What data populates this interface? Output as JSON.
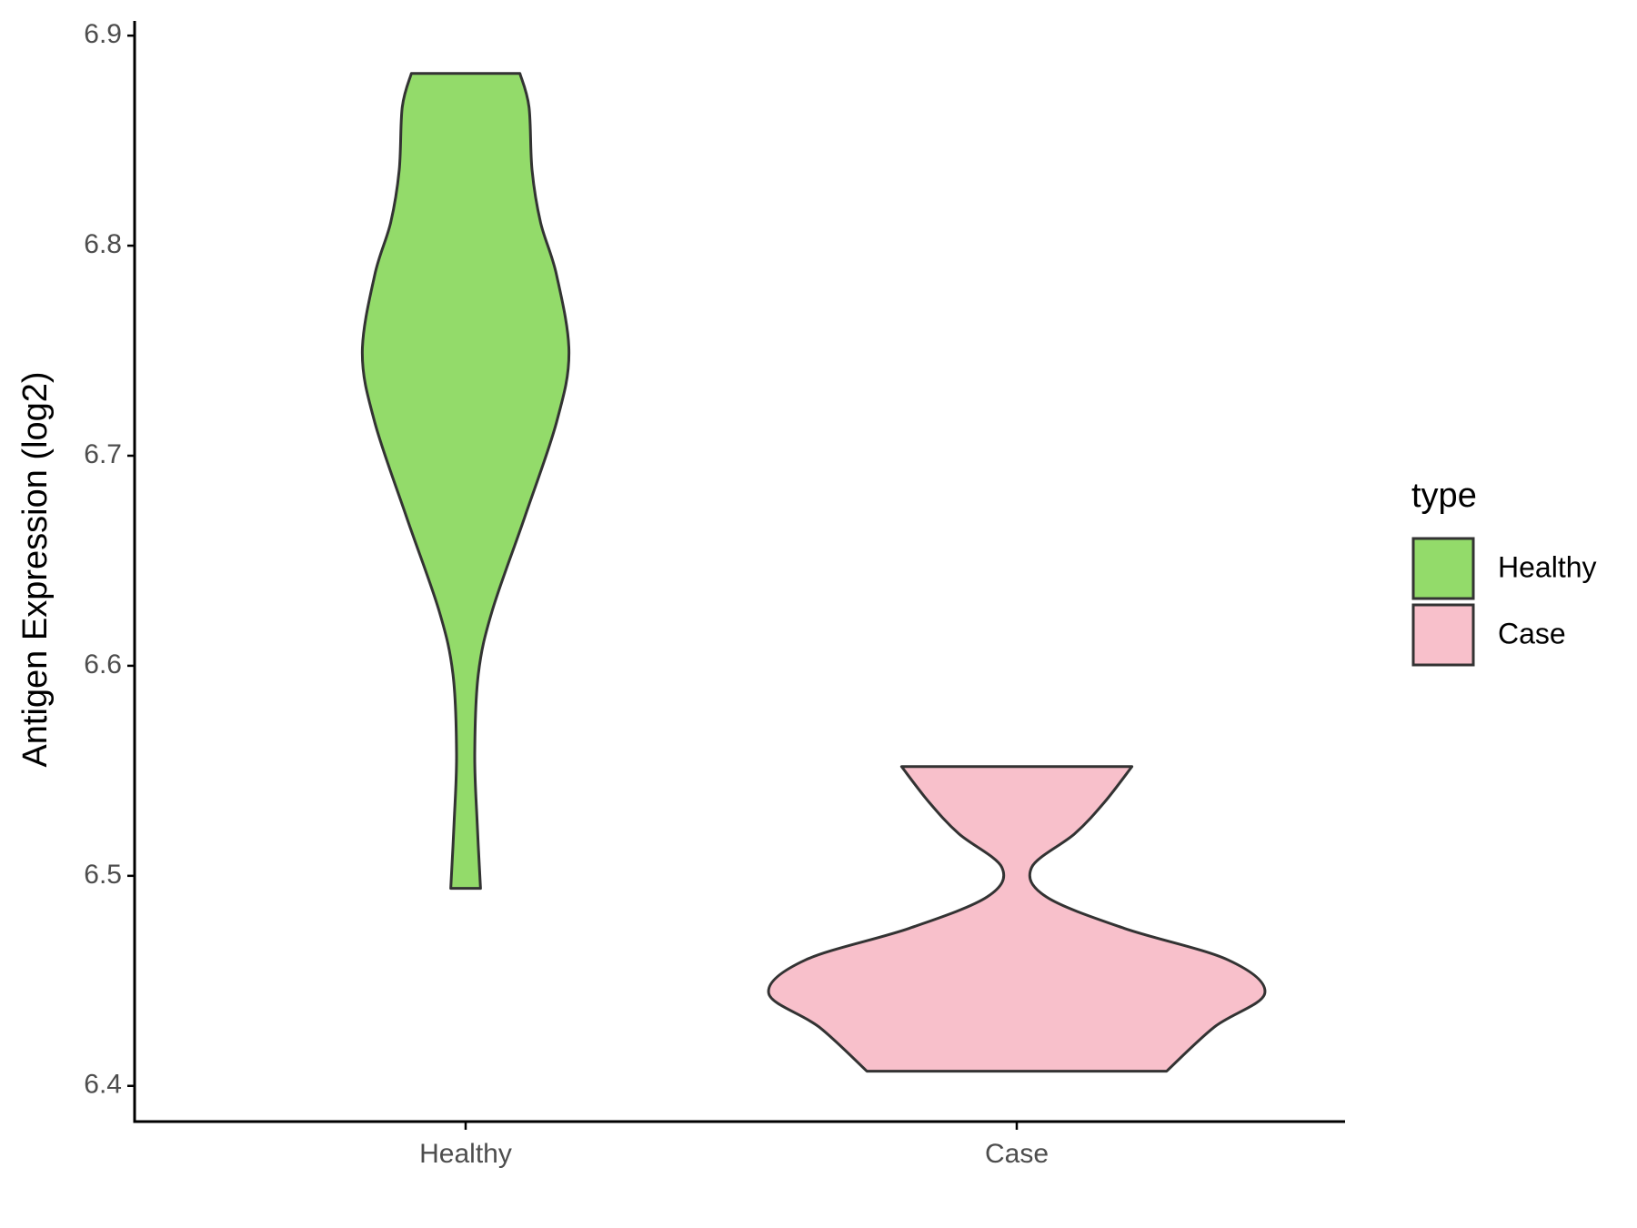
{
  "chart_data": {
    "type": "violin",
    "y_label": "Antigen Expression (log2)",
    "categories": [
      "Healthy",
      "Case"
    ],
    "ylim": [
      6.383,
      6.907
    ],
    "yticks": [
      6.4,
      6.5,
      6.6,
      6.7,
      6.8,
      6.9
    ],
    "grid": false,
    "legend_title": "type",
    "legend_position": "right",
    "series": [
      {
        "name": "Healthy",
        "color": "#93db6a",
        "y": [
          6.882,
          6.866,
          6.836,
          6.811,
          6.786,
          6.749,
          6.716,
          6.671,
          6.626,
          6.596,
          6.558,
          6.525,
          6.494
        ],
        "width": [
          0.197,
          0.23,
          0.241,
          0.272,
          0.33,
          0.375,
          0.33,
          0.215,
          0.096,
          0.046,
          0.033,
          0.042,
          0.054
        ]
      },
      {
        "name": "Case",
        "color": "#f8c0cb",
        "y": [
          6.552,
          6.535,
          6.52,
          6.504,
          6.49,
          6.475,
          6.46,
          6.444,
          6.428,
          6.407
        ],
        "width": [
          0.418,
          0.318,
          0.21,
          0.054,
          0.107,
          0.39,
          0.766,
          0.9,
          0.717,
          0.544
        ]
      }
    ]
  }
}
